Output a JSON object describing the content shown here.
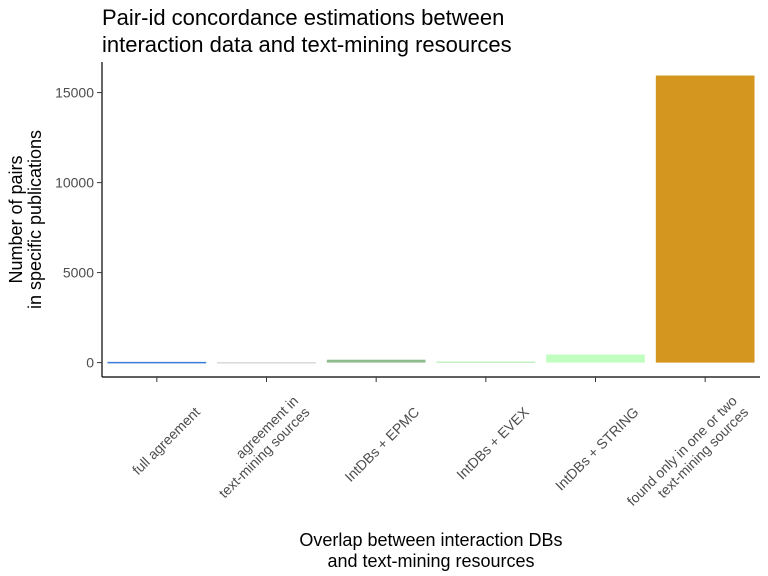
{
  "chart_data": {
    "type": "bar",
    "title_lines": [
      "Pair-id concordance estimations between",
      "interaction data and text-mining resources"
    ],
    "xlabel_lines": [
      "Overlap between interaction DBs",
      "and text-mining resources"
    ],
    "ylabel_lines": [
      "Number of pairs",
      "in specific publications"
    ],
    "categories": [
      [
        "full agreement"
      ],
      [
        "agreement in",
        "text-mining sources"
      ],
      [
        "IntDBs + EPMC"
      ],
      [
        "IntDBs + EVEX"
      ],
      [
        "IntDBs + STRING"
      ],
      [
        "found only in one or two",
        "text-mining sources"
      ]
    ],
    "values": [
      40,
      30,
      160,
      60,
      450,
      15950
    ],
    "colors": [
      "#3a7bd5",
      "#d9d9d9",
      "#8fbc8f",
      "#c1f0c1",
      "#c0ffc0",
      "#d4961e"
    ],
    "yticks": [
      0,
      5000,
      10000,
      15000
    ],
    "ylim": [
      -800,
      16700
    ],
    "grid": false,
    "legend": "none"
  }
}
